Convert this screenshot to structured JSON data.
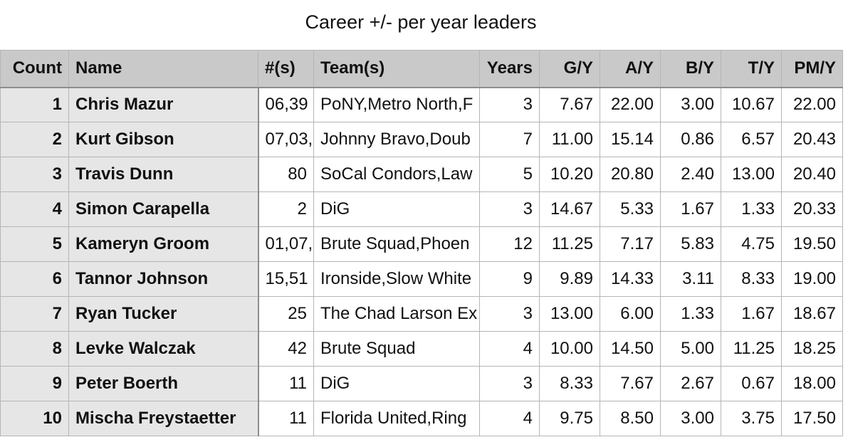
{
  "title": "Career +/- per year leaders",
  "table": {
    "columns": [
      "Count",
      "Name",
      "#(s)",
      "Team(s)",
      "Years",
      "G/Y",
      "A/Y",
      "B/Y",
      "T/Y",
      "PM/Y"
    ],
    "rows": [
      [
        "1",
        "Chris Mazur",
        "06,39",
        "PoNY,Metro North,F",
        "3",
        "7.67",
        "22.00",
        "3.00",
        "10.67",
        "22.00"
      ],
      [
        "2",
        "Kurt Gibson",
        "07,03,",
        "Johnny Bravo,Doub",
        "7",
        "11.00",
        "15.14",
        "0.86",
        "6.57",
        "20.43"
      ],
      [
        "3",
        "Travis Dunn",
        "80",
        "SoCal Condors,Law",
        "5",
        "10.20",
        "20.80",
        "2.40",
        "13.00",
        "20.40"
      ],
      [
        "4",
        "Simon Carapella",
        "2",
        "DiG",
        "3",
        "14.67",
        "5.33",
        "1.67",
        "1.33",
        "20.33"
      ],
      [
        "5",
        "Kameryn Groom",
        "01,07,",
        "Brute Squad,Phoen",
        "12",
        "11.25",
        "7.17",
        "5.83",
        "4.75",
        "19.50"
      ],
      [
        "6",
        "Tannor Johnson",
        "15,51",
        "Ironside,Slow White",
        "9",
        "9.89",
        "14.33",
        "3.11",
        "8.33",
        "19.00"
      ],
      [
        "7",
        "Ryan Tucker",
        "25",
        "The Chad Larson Ex",
        "3",
        "13.00",
        "6.00",
        "1.33",
        "1.67",
        "18.67"
      ],
      [
        "8",
        "Levke Walczak",
        "42",
        "Brute Squad",
        "4",
        "10.00",
        "14.50",
        "5.00",
        "11.25",
        "18.25"
      ],
      [
        "9",
        "Peter Boerth",
        "11",
        "DiG",
        "3",
        "8.33",
        "7.67",
        "2.67",
        "0.67",
        "18.00"
      ],
      [
        "10",
        "Mischa Freystaetter",
        "11",
        "Florida United,Ring",
        "4",
        "9.75",
        "8.50",
        "3.00",
        "3.75",
        "17.50"
      ]
    ]
  }
}
